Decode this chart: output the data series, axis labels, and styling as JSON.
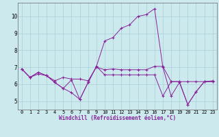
{
  "xlabel": "Windchill (Refroidissement éolien,°C)",
  "bg_color": "#cce9ee",
  "grid_color": "#aad0d8",
  "line_color": "#882299",
  "xlim_min": -0.5,
  "xlim_max": 23.5,
  "ylim_min": 4.5,
  "ylim_max": 10.8,
  "yticks": [
    5,
    6,
    7,
    8,
    9,
    10
  ],
  "xticks": [
    0,
    1,
    2,
    3,
    4,
    5,
    6,
    7,
    8,
    9,
    10,
    11,
    12,
    13,
    14,
    15,
    16,
    17,
    18,
    19,
    20,
    21,
    22,
    23
  ],
  "series": [
    [
      6.9,
      6.4,
      6.6,
      6.5,
      6.1,
      5.75,
      6.25,
      5.1,
      6.1,
      7.05,
      8.55,
      8.75,
      9.3,
      9.5,
      10.0,
      10.1,
      10.45,
      7.0,
      5.3,
      6.1,
      4.8,
      5.55,
      6.15,
      6.15
    ],
    [
      6.9,
      6.4,
      6.7,
      6.5,
      6.2,
      6.4,
      6.3,
      6.3,
      6.2,
      7.0,
      6.85,
      6.9,
      6.85,
      6.85,
      6.85,
      6.85,
      7.05,
      7.05,
      6.15,
      6.15,
      6.15,
      6.15,
      6.15,
      6.2
    ],
    [
      6.9,
      6.4,
      6.7,
      6.5,
      6.1,
      5.75,
      5.5,
      5.1,
      6.1,
      7.05,
      6.55,
      6.55,
      6.55,
      6.55,
      6.55,
      6.55,
      6.55,
      5.3,
      6.15,
      6.15,
      4.8,
      5.55,
      6.15,
      6.15
    ]
  ]
}
